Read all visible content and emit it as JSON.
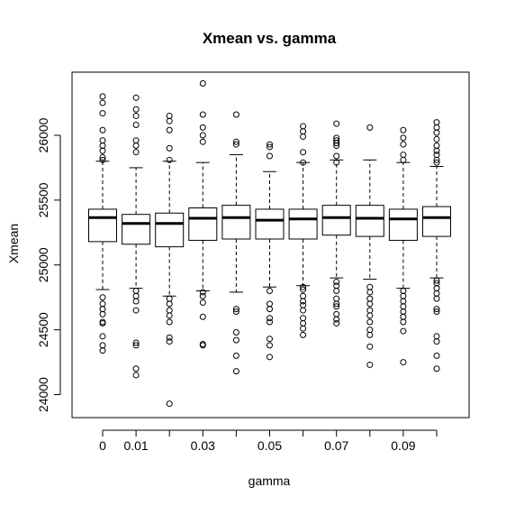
{
  "chart_data": {
    "type": "boxplot",
    "title": "Xmean vs. gamma",
    "xlabel": "gamma",
    "ylabel": "Xmean",
    "x_tick_labels": [
      "0",
      "0.01",
      "0.03",
      "0.05",
      "0.07",
      "0.09"
    ],
    "y_ticks": [
      24000,
      24500,
      25000,
      25500,
      26000
    ],
    "ylim": [
      23900,
      26450
    ],
    "categories": [
      "0",
      "0.01",
      "0.02",
      "0.03",
      "0.04",
      "0.05",
      "0.06",
      "0.07",
      "0.08",
      "0.09",
      "0.1"
    ],
    "boxes": [
      {
        "q1": 25180,
        "median": 25365,
        "q3": 25430,
        "whisker_low": 24810,
        "whisker_high": 25800,
        "outliers": [
          26300,
          26250,
          26170,
          26040,
          25960,
          25920,
          25880,
          25830,
          25810,
          24750,
          24700,
          24660,
          24620,
          24560,
          24550,
          24450,
          24380,
          24340
        ]
      },
      {
        "q1": 25160,
        "median": 25320,
        "q3": 25390,
        "whisker_low": 24820,
        "whisker_high": 25750,
        "outliers": [
          26290,
          26200,
          26150,
          26080,
          25960,
          25920,
          25870,
          24800,
          24760,
          24720,
          24650,
          24400,
          24380,
          24200,
          24150
        ]
      },
      {
        "q1": 25140,
        "median": 25320,
        "q3": 25400,
        "whisker_low": 24760,
        "whisker_high": 25800,
        "outliers": [
          26150,
          26110,
          26040,
          25900,
          25810,
          24740,
          24700,
          24650,
          24610,
          24560,
          24440,
          24410,
          23930
        ]
      },
      {
        "q1": 25190,
        "median": 25360,
        "q3": 25440,
        "whisker_low": 24800,
        "whisker_high": 25790,
        "outliers": [
          26400,
          26160,
          26060,
          26000,
          25950,
          24790,
          24760,
          24710,
          24600,
          24390,
          24380
        ]
      },
      {
        "q1": 25200,
        "median": 25365,
        "q3": 25460,
        "whisker_low": 24790,
        "whisker_high": 25850,
        "outliers": [
          26160,
          25950,
          25930,
          24660,
          24640,
          24480,
          24420,
          24300,
          24180
        ]
      },
      {
        "q1": 25200,
        "median": 25345,
        "q3": 25430,
        "whisker_low": 24830,
        "whisker_high": 25720,
        "outliers": [
          25930,
          25910,
          25840,
          24800,
          24700,
          24660,
          24590,
          24560,
          24430,
          24380,
          24290
        ]
      },
      {
        "q1": 25200,
        "median": 25355,
        "q3": 25430,
        "whisker_low": 24840,
        "whisker_high": 25790,
        "outliers": [
          26070,
          26030,
          25990,
          25870,
          25790,
          24830,
          24810,
          24760,
          24720,
          24690,
          24650,
          24590,
          24550,
          24510,
          24460
        ]
      },
      {
        "q1": 25230,
        "median": 25365,
        "q3": 25460,
        "whisker_low": 24900,
        "whisker_high": 25810,
        "outliers": [
          26090,
          25980,
          25960,
          25940,
          25920,
          25840,
          25790,
          24870,
          24840,
          24800,
          24740,
          24700,
          24680,
          24620,
          24580,
          24550
        ]
      },
      {
        "q1": 25220,
        "median": 25360,
        "q3": 25460,
        "whisker_low": 24890,
        "whisker_high": 25810,
        "outliers": [
          26060,
          24830,
          24790,
          24740,
          24700,
          24650,
          24610,
          24560,
          24500,
          24460,
          24370,
          24230
        ]
      },
      {
        "q1": 25190,
        "median": 25355,
        "q3": 25430,
        "whisker_low": 24820,
        "whisker_high": 25790,
        "outliers": [
          26040,
          25980,
          25930,
          25850,
          25810,
          24800,
          24760,
          24720,
          24680,
          24640,
          24600,
          24560,
          24490,
          24250
        ]
      },
      {
        "q1": 25220,
        "median": 25365,
        "q3": 25450,
        "whisker_low": 24900,
        "whisker_high": 25760,
        "outliers": [
          26100,
          26060,
          26020,
          25970,
          25920,
          25880,
          25850,
          25810,
          25790,
          24880,
          24860,
          24820,
          24780,
          24740,
          24660,
          24640,
          24450,
          24410,
          24300,
          24200
        ]
      }
    ],
    "grid": false,
    "legend": "none"
  }
}
